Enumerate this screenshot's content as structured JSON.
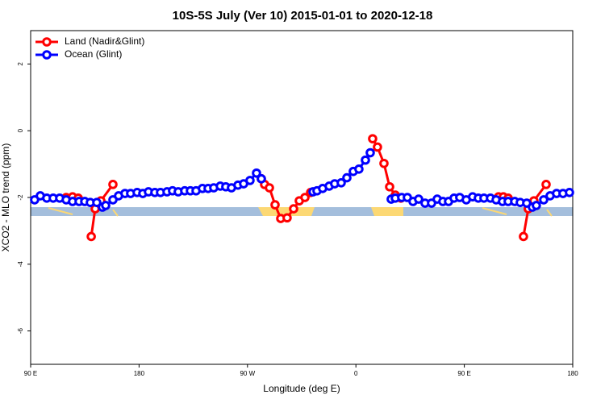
{
  "chart_data": {
    "type": "line",
    "title": "10S-5S July (Ver 10)   2015-01-01 to 2020-12-18",
    "x_label": "Longitude (deg E)",
    "y_label": "XCO2 - MLO trend (ppm)",
    "xlim": [
      90,
      540
    ],
    "xticks": [
      {
        "value": 90,
        "label": "90 E"
      },
      180,
      {
        "value": 270,
        "label": "90 W"
      },
      {
        "value": 360,
        "label": "0"
      },
      {
        "value": 450,
        "label": "90 E"
      },
      {
        "value": 540,
        "label": "180"
      }
    ],
    "ylim": [
      -7,
      3
    ],
    "yticks": [
      2,
      0,
      -2,
      -4,
      -6
    ],
    "legend": "top-left",
    "series": [
      {
        "name": "Land (Nadir&Glint)",
        "color": "#ff0000",
        "x": [
          119.5,
          124.8,
          129.5,
          null,
          140.3,
          143.6,
          148.3,
          158.3,
          null,
          281.5,
          284.2,
          288.2,
          292.9,
          297.6,
          302.9,
          308.3,
          313.0,
          317.7,
          322.4,
          null,
          373.9,
          377.9,
          383.3,
          388.0,
          392.7,
          397.4,
          null,
          478.4,
          482.4,
          486.4,
          null,
          499.1,
          503.1,
          507.8,
          517.9
        ],
        "values": [
          -2.0,
          -1.98,
          -2.02,
          null,
          -3.17,
          -2.34,
          -2.1,
          -1.61,
          null,
          -1.44,
          -1.61,
          -1.71,
          -2.22,
          -2.63,
          -2.61,
          -2.34,
          -2.1,
          -2.0,
          -1.85,
          null,
          -0.24,
          -0.49,
          -0.98,
          -1.68,
          -1.93,
          -2.02,
          null,
          -1.98,
          -1.98,
          -2.02,
          null,
          -3.17,
          -2.34,
          -2.1,
          -1.61
        ]
      },
      {
        "name": "Ocean (Glint)",
        "color": "#0000ff",
        "x": [
          93.3,
          98.0,
          103.4,
          108.7,
          114.1,
          119.5,
          124.8,
          130.2,
          134.9,
          139.5,
          144.9,
          149.6,
          152.3,
          158.3,
          163.0,
          168.3,
          173.0,
          178.4,
          183.1,
          187.8,
          193.1,
          197.8,
          203.2,
          207.8,
          212.5,
          217.9,
          222.6,
          227.3,
          232.6,
          237.3,
          242.0,
          247.4,
          252.0,
          256.7,
          262.1,
          266.8,
          272.1,
          277.5,
          281.5,
          null,
          324.4,
          327.7,
          332.4,
          337.8,
          342.4,
          347.8,
          352.5,
          357.8,
          362.5,
          367.9,
          371.9,
          null,
          389.3,
          392.7,
          398.0,
          402.7,
          407.4,
          412.1,
          417.4,
          422.8,
          427.5,
          432.2,
          436.9,
          441.5,
          446.2,
          451.6,
          456.9,
          461.6,
          466.3,
          471.7,
          476.4,
          481.7,
          486.4,
          491.8,
          496.4,
          501.8,
          506.5,
          509.8,
          515.9,
          521.2,
          526.6,
          531.9,
          537.3
        ],
        "values": [
          -2.07,
          -1.95,
          -2.02,
          -2.02,
          -2.02,
          -2.07,
          -2.12,
          -2.12,
          -2.12,
          -2.15,
          -2.15,
          -2.29,
          -2.24,
          -2.07,
          -1.95,
          -1.88,
          -1.88,
          -1.85,
          -1.88,
          -1.83,
          -1.85,
          -1.85,
          -1.83,
          -1.8,
          -1.83,
          -1.8,
          -1.8,
          -1.8,
          -1.73,
          -1.73,
          -1.71,
          -1.66,
          -1.68,
          -1.71,
          -1.63,
          -1.59,
          -1.49,
          -1.27,
          -1.44,
          null,
          -1.83,
          -1.8,
          -1.73,
          -1.66,
          -1.59,
          -1.56,
          -1.41,
          -1.22,
          -1.15,
          -0.88,
          -0.66,
          null,
          -2.05,
          -2.02,
          -2.0,
          -2.0,
          -2.12,
          -2.05,
          -2.17,
          -2.17,
          -2.05,
          -2.12,
          -2.12,
          -2.02,
          -2.0,
          -2.07,
          -1.98,
          -2.02,
          -2.02,
          -2.02,
          -2.07,
          -2.12,
          -2.12,
          -2.12,
          -2.15,
          -2.17,
          -2.29,
          -2.24,
          -2.07,
          -1.95,
          -1.88,
          -1.88,
          -1.85
        ]
      }
    ]
  }
}
